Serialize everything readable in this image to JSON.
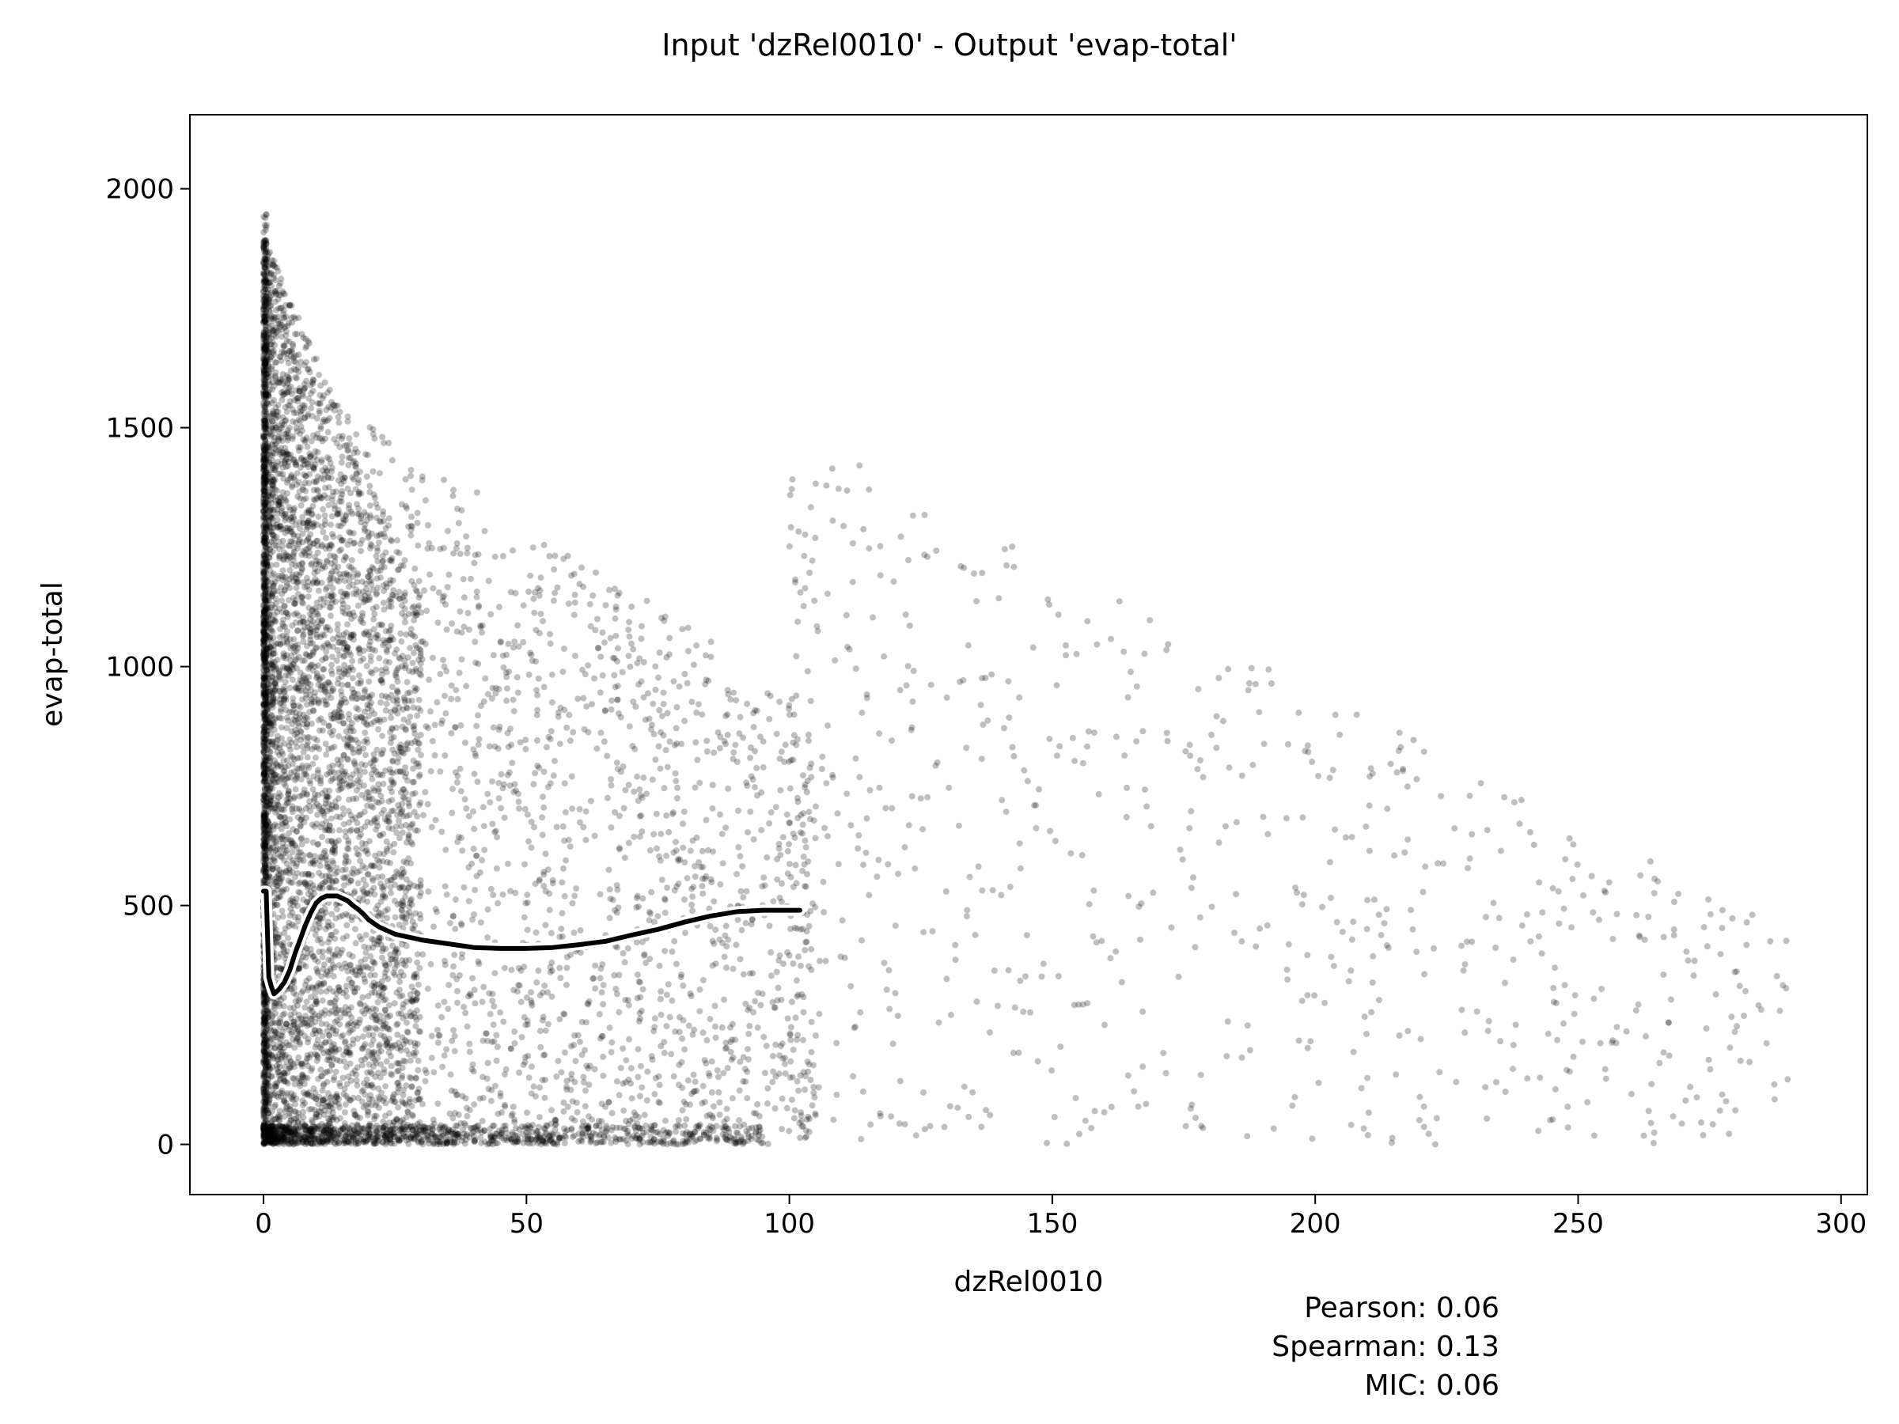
{
  "chart_data": {
    "type": "scatter",
    "title": "Input 'dzRel0010' - Output 'evap-total'",
    "xlabel": "dzRel0010",
    "ylabel": "evap-total",
    "xlim": [
      -14,
      305
    ],
    "ylim": [
      -105,
      2155
    ],
    "xticks": [
      0,
      50,
      100,
      150,
      200,
      250,
      300
    ],
    "yticks": [
      0,
      500,
      1000,
      1500,
      2000
    ],
    "grid": false,
    "point_color": "#000000",
    "point_alpha": 0.25,
    "trend_color": "#000000",
    "trend_outline_color": "#ffffff",
    "trend": {
      "x": [
        0,
        0.5,
        1,
        1.5,
        2,
        3,
        4,
        5,
        6,
        7,
        8,
        9,
        10,
        11,
        12,
        13,
        14,
        15,
        16,
        17,
        18,
        19,
        20,
        22,
        25,
        30,
        35,
        40,
        45,
        50,
        55,
        60,
        65,
        70,
        75,
        80,
        85,
        90,
        95,
        102
      ],
      "y": [
        530,
        530,
        350,
        330,
        315,
        325,
        340,
        365,
        400,
        430,
        460,
        485,
        505,
        515,
        520,
        520,
        520,
        515,
        510,
        500,
        492,
        482,
        470,
        455,
        440,
        428,
        420,
        412,
        410,
        410,
        412,
        418,
        425,
        438,
        450,
        465,
        478,
        487,
        490,
        490
      ]
    },
    "stats": [
      "Pearson: 0.06",
      "Spearman: 0.13",
      "MIC: 0.06"
    ]
  }
}
